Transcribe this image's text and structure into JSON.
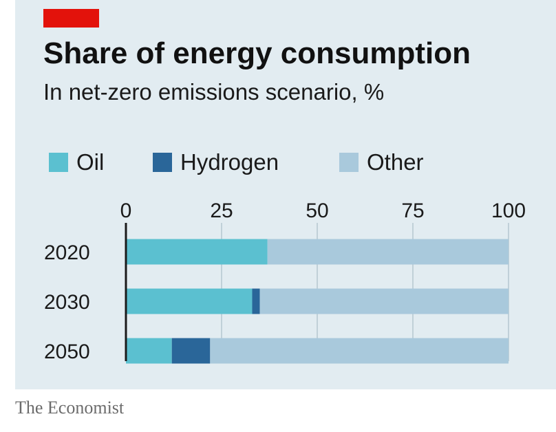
{
  "title": "Share of energy consumption",
  "subtitle": "In net-zero emissions scenario, %",
  "source": "The Economist",
  "colors": {
    "background": "#e2ecf1",
    "accent": "#e3120b",
    "oil": "#5bc0d0",
    "hydrogen": "#2a6699",
    "other": "#a9c9dc",
    "gridline": "#b5c6cf",
    "axis": "#1a1a1a"
  },
  "chart_data": {
    "type": "bar",
    "orientation": "horizontal",
    "stacked": true,
    "categories": [
      "2020",
      "2030",
      "2050"
    ],
    "series": [
      {
        "name": "Oil",
        "values": [
          37,
          33,
          12
        ]
      },
      {
        "name": "Hydrogen",
        "values": [
          0,
          2,
          10
        ]
      },
      {
        "name": "Other",
        "values": [
          63,
          65,
          78
        ]
      }
    ],
    "xlim": [
      0,
      100
    ],
    "xticks": [
      0,
      25,
      50,
      75,
      100
    ],
    "xtick_labels": [
      "0",
      "25",
      "50",
      "75",
      "100"
    ],
    "axis_position": "top",
    "grid": true,
    "legend_position": "top-left"
  }
}
